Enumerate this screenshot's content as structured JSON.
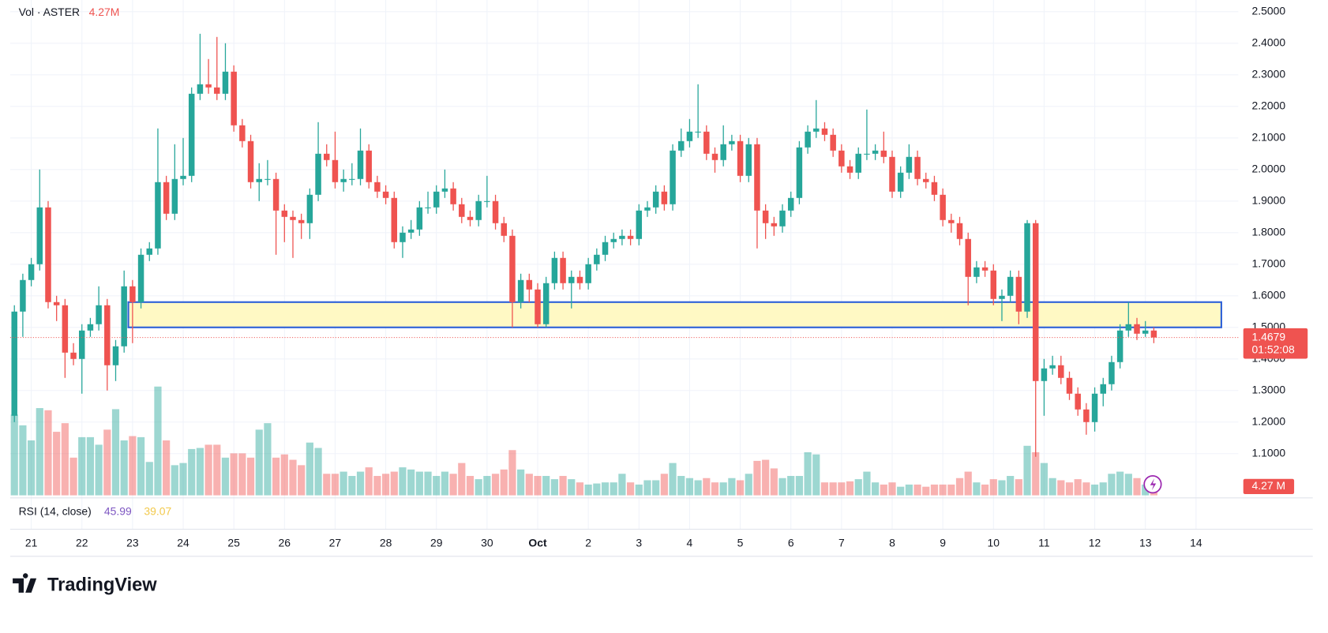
{
  "chart_data": {
    "type": "candlestick",
    "volume_legend": {
      "name": "Vol · ASTER",
      "value_label": "4.27M"
    },
    "volume_axis_label": "4.27 M",
    "countdown": "01:52:08",
    "rsi": {
      "title": "RSI (14, close)",
      "values": [
        45.99,
        39.07
      ],
      "colors": [
        "#7e57c2",
        "#f2c94c"
      ]
    },
    "brand": "TradingView",
    "up_color": "#26a69a",
    "down_color": "#ef5350",
    "zone_color": "#fff9c4",
    "zone_border": "#2f62d8",
    "grid": true,
    "xlim": [
      -10,
      572
    ],
    "xticks": [
      {
        "value": 0,
        "label": "21"
      },
      {
        "value": 24,
        "label": "22"
      },
      {
        "value": 48,
        "label": "23"
      },
      {
        "value": 72,
        "label": "24"
      },
      {
        "value": 96,
        "label": "25"
      },
      {
        "value": 120,
        "label": "26"
      },
      {
        "value": 144,
        "label": "27"
      },
      {
        "value": 168,
        "label": "28"
      },
      {
        "value": 192,
        "label": "29"
      },
      {
        "value": 216,
        "label": "30"
      },
      {
        "value": 240,
        "label": "Oct"
      },
      {
        "value": 264,
        "label": "2"
      },
      {
        "value": 288,
        "label": "3"
      },
      {
        "value": 312,
        "label": "4"
      },
      {
        "value": 336,
        "label": "5"
      },
      {
        "value": 360,
        "label": "6"
      },
      {
        "value": 384,
        "label": "7"
      },
      {
        "value": 408,
        "label": "8"
      },
      {
        "value": 432,
        "label": "9"
      },
      {
        "value": 456,
        "label": "10"
      },
      {
        "value": 480,
        "label": "11"
      },
      {
        "value": 504,
        "label": "12"
      },
      {
        "value": 528,
        "label": "13"
      },
      {
        "value": 552,
        "label": "14"
      }
    ],
    "ylim": [
      0.968,
      2.537
    ],
    "yticks": [
      {
        "value": 1.1,
        "label": "1.1000"
      },
      {
        "value": 1.2,
        "label": "1.2000"
      },
      {
        "value": 1.3,
        "label": "1.3000"
      },
      {
        "value": 1.4,
        "label": "1.4000"
      },
      {
        "value": 1.5,
        "label": "1.5000"
      },
      {
        "value": 1.6,
        "label": "1.6000"
      },
      {
        "value": 1.7,
        "label": "1.7000"
      },
      {
        "value": 1.8,
        "label": "1.8000"
      },
      {
        "value": 1.9,
        "label": "1.9000"
      },
      {
        "value": 2.0,
        "label": "2.0000"
      },
      {
        "value": 2.1,
        "label": "2.1000"
      },
      {
        "value": 2.2,
        "label": "2.2000"
      },
      {
        "value": 2.3,
        "label": "2.3000"
      },
      {
        "value": 2.4,
        "label": "2.4000"
      },
      {
        "value": 2.5,
        "label": "2.5000"
      }
    ],
    "y2lim": [
      0,
      460
    ],
    "zone": {
      "low": 1.5,
      "high": 1.58,
      "start": 46,
      "end": 564
    },
    "candles": {
      "x": [
        -8,
        -4,
        0,
        4,
        8,
        12,
        16,
        20,
        24,
        28,
        32,
        36,
        40,
        44,
        48,
        52,
        56,
        60,
        64,
        68,
        72,
        76,
        80,
        84,
        88,
        92,
        96,
        100,
        104,
        108,
        112,
        116,
        120,
        124,
        128,
        132,
        136,
        140,
        144,
        148,
        152,
        156,
        160,
        164,
        168,
        172,
        176,
        180,
        184,
        188,
        192,
        196,
        200,
        204,
        208,
        212,
        216,
        220,
        224,
        228,
        232,
        236,
        240,
        244,
        248,
        252,
        256,
        260,
        264,
        268,
        272,
        276,
        280,
        284,
        288,
        292,
        296,
        300,
        304,
        308,
        312,
        316,
        320,
        324,
        328,
        332,
        336,
        340,
        344,
        348,
        352,
        356,
        360,
        364,
        368,
        372,
        376,
        380,
        384,
        388,
        392,
        396,
        400,
        404,
        408,
        412,
        416,
        420,
        424,
        428,
        432,
        436,
        440,
        444,
        448,
        452,
        456,
        460,
        464,
        468,
        472,
        476,
        480,
        484,
        488,
        492,
        496,
        500,
        504,
        508,
        512,
        516,
        520,
        524,
        528,
        532
      ],
      "open": [
        1.22,
        1.55,
        1.65,
        1.7,
        1.88,
        1.58,
        1.57,
        1.42,
        1.4,
        1.49,
        1.51,
        1.57,
        1.38,
        1.44,
        1.63,
        1.58,
        1.73,
        1.75,
        1.96,
        1.86,
        1.97,
        1.98,
        2.24,
        2.27,
        2.26,
        2.24,
        2.31,
        2.14,
        2.09,
        1.96,
        1.97,
        1.97,
        1.87,
        1.85,
        1.84,
        1.83,
        1.92,
        2.05,
        2.03,
        1.96,
        1.97,
        1.97,
        2.06,
        1.96,
        1.93,
        1.91,
        1.77,
        1.8,
        1.81,
        1.88,
        1.88,
        1.93,
        1.94,
        1.89,
        1.85,
        1.84,
        1.9,
        1.9,
        1.83,
        1.79,
        1.58,
        1.65,
        1.62,
        1.51,
        1.64,
        1.72,
        1.64,
        1.66,
        1.64,
        1.7,
        1.73,
        1.77,
        1.78,
        1.79,
        1.78,
        1.87,
        1.88,
        1.93,
        1.89,
        2.06,
        2.09,
        2.12,
        2.12,
        2.05,
        2.03,
        2.08,
        2.09,
        1.98,
        2.08,
        1.87,
        1.83,
        1.82,
        1.87,
        1.91,
        2.07,
        2.12,
        2.13,
        2.11,
        2.06,
        2.01,
        1.99,
        2.05,
        2.05,
        2.06,
        2.04,
        1.93,
        1.99,
        2.04,
        1.97,
        1.96,
        1.92,
        1.84,
        1.83,
        1.78,
        1.66,
        1.69,
        1.68,
        1.59,
        1.6,
        1.66,
        1.55,
        1.83,
        1.33,
        1.37,
        1.38,
        1.34,
        1.29,
        1.24,
        1.2,
        1.29,
        1.32,
        1.39,
        1.49,
        1.51,
        1.48,
        1.49
      ],
      "high": [
        1.57,
        1.67,
        1.72,
        2.0,
        1.9,
        1.6,
        1.59,
        1.45,
        1.51,
        1.53,
        1.63,
        1.59,
        1.46,
        1.68,
        1.65,
        1.75,
        1.77,
        2.13,
        1.98,
        2.08,
        2.1,
        2.26,
        2.43,
        2.35,
        2.42,
        2.4,
        2.33,
        2.16,
        2.11,
        2.02,
        2.03,
        1.99,
        1.89,
        1.87,
        1.86,
        1.94,
        2.15,
        2.08,
        2.12,
        2.0,
        2.02,
        2.13,
        2.08,
        1.98,
        1.95,
        1.93,
        1.82,
        1.84,
        1.9,
        1.93,
        1.95,
        2.0,
        1.96,
        1.91,
        1.87,
        1.92,
        1.98,
        1.92,
        1.85,
        1.81,
        1.67,
        1.67,
        1.64,
        1.66,
        1.74,
        1.74,
        1.68,
        1.68,
        1.72,
        1.75,
        1.79,
        1.8,
        1.81,
        1.81,
        1.89,
        1.9,
        1.95,
        1.95,
        2.08,
        2.13,
        2.16,
        2.27,
        2.14,
        2.07,
        2.14,
        2.11,
        2.11,
        2.1,
        2.1,
        1.89,
        1.85,
        1.89,
        1.93,
        2.09,
        2.14,
        2.22,
        2.15,
        2.13,
        2.08,
        2.03,
        2.07,
        2.19,
        2.08,
        2.12,
        2.06,
        2.01,
        2.08,
        2.06,
        1.99,
        1.98,
        1.94,
        1.86,
        1.85,
        1.8,
        1.71,
        1.71,
        1.7,
        1.62,
        1.68,
        1.68,
        1.84,
        1.84,
        1.4,
        1.41,
        1.41,
        1.36,
        1.31,
        1.26,
        1.31,
        1.34,
        1.41,
        1.51,
        1.58,
        1.53,
        1.52,
        1.5
      ],
      "low": [
        1.2,
        1.47,
        1.63,
        1.68,
        1.56,
        1.52,
        1.34,
        1.38,
        1.29,
        1.47,
        1.49,
        1.3,
        1.33,
        1.42,
        1.45,
        1.56,
        1.71,
        1.73,
        1.84,
        1.84,
        1.95,
        1.96,
        2.22,
        2.24,
        2.22,
        2.22,
        2.12,
        2.07,
        1.94,
        1.9,
        1.95,
        1.73,
        1.77,
        1.72,
        1.78,
        1.78,
        1.9,
        2.01,
        1.94,
        1.93,
        1.95,
        1.95,
        1.94,
        1.91,
        1.89,
        1.75,
        1.72,
        1.78,
        1.79,
        1.86,
        1.86,
        1.91,
        1.87,
        1.83,
        1.82,
        1.82,
        1.88,
        1.81,
        1.77,
        1.5,
        1.56,
        1.58,
        1.5,
        1.5,
        1.62,
        1.62,
        1.56,
        1.62,
        1.62,
        1.68,
        1.71,
        1.75,
        1.76,
        1.76,
        1.76,
        1.85,
        1.86,
        1.87,
        1.87,
        2.04,
        2.07,
        2.1,
        2.03,
        1.99,
        2.01,
        2.06,
        1.96,
        1.96,
        1.75,
        1.78,
        1.79,
        1.8,
        1.85,
        1.89,
        2.05,
        2.1,
        2.09,
        2.04,
        1.99,
        1.97,
        1.97,
        2.03,
        2.03,
        2.02,
        1.91,
        1.91,
        1.97,
        1.95,
        1.94,
        1.9,
        1.82,
        1.8,
        1.76,
        1.57,
        1.64,
        1.66,
        1.57,
        1.52,
        1.58,
        1.51,
        1.53,
        1.09,
        1.22,
        1.35,
        1.32,
        1.27,
        1.22,
        1.16,
        1.17,
        1.25,
        1.3,
        1.37,
        1.47,
        1.46,
        1.47,
        1.45
      ],
      "close": [
        1.55,
        1.65,
        1.7,
        1.88,
        1.58,
        1.57,
        1.42,
        1.4,
        1.49,
        1.51,
        1.57,
        1.38,
        1.44,
        1.63,
        1.58,
        1.73,
        1.75,
        1.96,
        1.86,
        1.97,
        1.98,
        2.24,
        2.27,
        2.26,
        2.24,
        2.31,
        2.14,
        2.09,
        1.96,
        1.97,
        1.97,
        1.87,
        1.85,
        1.84,
        1.83,
        1.92,
        2.05,
        2.03,
        1.96,
        1.97,
        1.97,
        2.06,
        1.96,
        1.93,
        1.91,
        1.77,
        1.8,
        1.81,
        1.88,
        1.88,
        1.93,
        1.94,
        1.89,
        1.85,
        1.84,
        1.9,
        1.9,
        1.83,
        1.79,
        1.58,
        1.65,
        1.62,
        1.51,
        1.64,
        1.72,
        1.64,
        1.66,
        1.64,
        1.7,
        1.73,
        1.77,
        1.78,
        1.79,
        1.78,
        1.87,
        1.88,
        1.93,
        1.89,
        2.06,
        2.09,
        2.12,
        2.12,
        2.05,
        2.03,
        2.08,
        2.09,
        1.98,
        2.08,
        1.87,
        1.83,
        1.82,
        1.87,
        1.91,
        2.07,
        2.12,
        2.13,
        2.11,
        2.06,
        2.01,
        1.99,
        2.05,
        2.05,
        2.06,
        2.04,
        1.93,
        1.99,
        2.04,
        1.97,
        1.96,
        1.92,
        1.84,
        1.83,
        1.78,
        1.66,
        1.69,
        1.68,
        1.59,
        1.6,
        1.66,
        1.55,
        1.83,
        1.33,
        1.37,
        1.38,
        1.34,
        1.29,
        1.24,
        1.2,
        1.29,
        1.32,
        1.39,
        1.49,
        1.51,
        1.48,
        1.49,
        1.4679
      ]
    },
    "volume": {
      "axis": "y2",
      "values": [
        75,
        65,
        51,
        81,
        79,
        59,
        67,
        35,
        54,
        54,
        47,
        61,
        80,
        51,
        55,
        54,
        31,
        101,
        51,
        28,
        30,
        43,
        44,
        47,
        47,
        35,
        39,
        39,
        35,
        61,
        67,
        35,
        38,
        33,
        28,
        49,
        44,
        20,
        20,
        22,
        18,
        22,
        26,
        18,
        20,
        22,
        26,
        24,
        22,
        22,
        18,
        22,
        20,
        30,
        18,
        15,
        18,
        20,
        24,
        42,
        24,
        20,
        18,
        18,
        15,
        18,
        15,
        12,
        10,
        11,
        12,
        12,
        20,
        12,
        10,
        14,
        14,
        20,
        30,
        18,
        16,
        14,
        16,
        12,
        12,
        16,
        14,
        20,
        32,
        33,
        25,
        16,
        18,
        18,
        40,
        38,
        12,
        12,
        12,
        13,
        15,
        22,
        12,
        10,
        12,
        8,
        10,
        10,
        8,
        10,
        10,
        10,
        16,
        22,
        12,
        10,
        15,
        14,
        18,
        15,
        46,
        40,
        30,
        16,
        14,
        12,
        15,
        12,
        10,
        12,
        20,
        22,
        20,
        16,
        10,
        4.27
      ]
    }
  }
}
